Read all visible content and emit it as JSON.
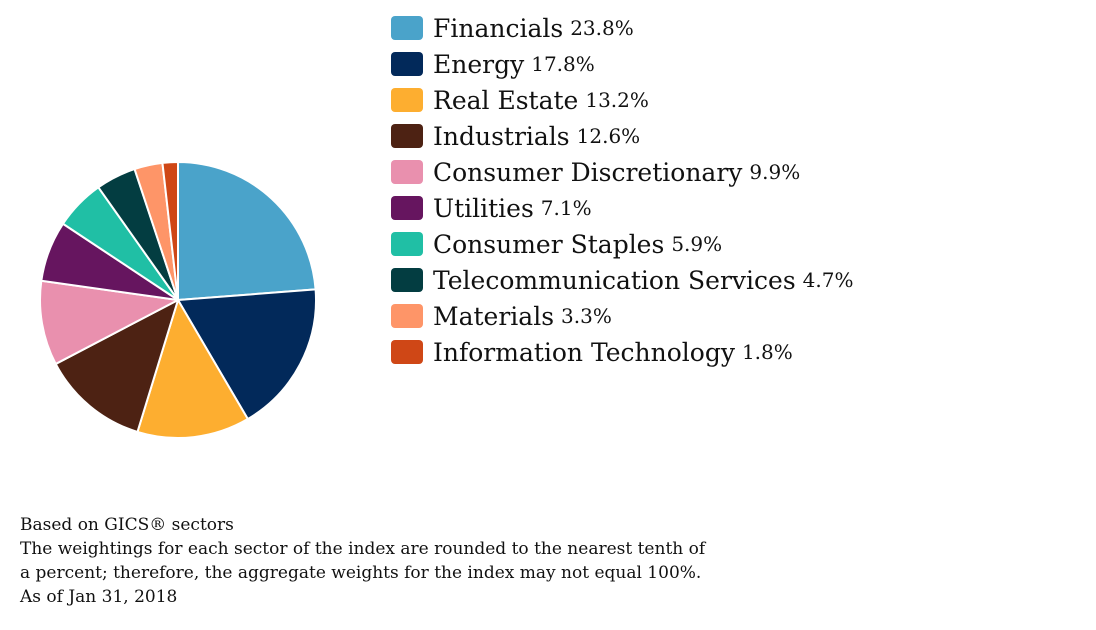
{
  "chart_data": {
    "type": "pie",
    "categories": [
      "Financials",
      "Energy",
      "Real Estate",
      "Industrials",
      "Consumer Discretionary",
      "Utilities",
      "Consumer Staples",
      "Telecommunication Services",
      "Materials",
      "Information Technology"
    ],
    "values": [
      23.8,
      17.8,
      13.2,
      12.6,
      9.9,
      7.1,
      5.9,
      4.7,
      3.3,
      1.8
    ],
    "value_labels": [
      "23.8%",
      "17.8%",
      "13.2%",
      "12.6%",
      "9.9%",
      "7.1%",
      "5.9%",
      "4.7%",
      "3.3%",
      "1.8%"
    ],
    "colors": [
      "#4aa3ca",
      "#02295a",
      "#fdae30",
      "#4d2213",
      "#e990ae",
      "#66155f",
      "#20bfa5",
      "#033d41",
      "#fe9568",
      "#cf4716"
    ],
    "start": "12 o'clock",
    "direction": "clockwise",
    "legend_position": "right"
  },
  "footnote": {
    "lines": [
      "Based on GICS® sectors",
      "The weightings for each sector of the index are rounded to the nearest tenth of",
      "a percent; therefore, the aggregate weights for the index may not equal 100%.",
      "As of Jan 31, 2018"
    ]
  }
}
